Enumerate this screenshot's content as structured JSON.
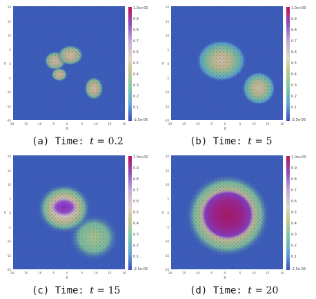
{
  "colorbar": {
    "top_label": "1.0e+00",
    "bottom_label": "-2.5e-06",
    "ticks": [
      "0.9",
      "0.8",
      "0.7",
      "0.6",
      "0.5",
      "0.4",
      "0.3",
      "0.2",
      "0.1"
    ]
  },
  "axes": {
    "xlabel": "X",
    "ylabel": "Y",
    "xticks": [
      "-20",
      "-15",
      "-10",
      "-5",
      "0",
      "5",
      "10",
      "15",
      "20"
    ],
    "yticks": [
      "20",
      "15",
      "10",
      "5",
      "0",
      "-5",
      "-10",
      "-15",
      "-20"
    ]
  },
  "panels": [
    {
      "id": "a",
      "caption_prefix": "(a) Time: ",
      "caption_var": "t",
      "caption_eq": " = ",
      "caption_value": "0.2"
    },
    {
      "id": "b",
      "caption_prefix": "(b) Time: ",
      "caption_var": "t",
      "caption_eq": " = ",
      "caption_value": "5"
    },
    {
      "id": "c",
      "caption_prefix": "(c) Time: ",
      "caption_var": "t",
      "caption_eq": " = ",
      "caption_value": "15"
    },
    {
      "id": "d",
      "caption_prefix": "(d) Time: ",
      "caption_var": "t",
      "caption_eq": " = ",
      "caption_value": "20"
    }
  ]
}
